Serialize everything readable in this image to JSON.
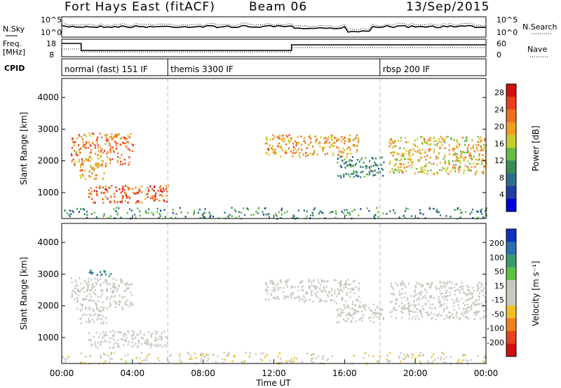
{
  "header": {
    "station": "Fort Hays East (fitACF)",
    "beam": "Beam 06",
    "date": "13/Sep/2015"
  },
  "noise_panel": {
    "left_label": "N.Sky",
    "right_label": "N.Search",
    "left_ticks": [
      "10^5",
      "10^0"
    ],
    "right_ticks": [
      "10^5",
      "10^0"
    ]
  },
  "freq_panel": {
    "left_label_line1": "Freq.",
    "left_label_line2": "[MHz]",
    "right_label": "Nave",
    "left_ticks": [
      "18",
      "8"
    ],
    "right_ticks": [
      "60",
      "0"
    ]
  },
  "cpid_panel": {
    "label": "CPID",
    "programs": [
      {
        "name": "normal (fast) 151 IF",
        "start_hour": 0
      },
      {
        "name": "themis 3300 IF",
        "start_hour": 6
      },
      {
        "name": "rbsp 200 IF",
        "start_hour": 18
      }
    ]
  },
  "colors": {
    "power_scale": [
      "#0000dd",
      "#1f3f9f",
      "#2e6e8a",
      "#3a8a5a",
      "#66bb44",
      "#c8cc2a",
      "#f0a020",
      "#f07020",
      "#e83c1c",
      "#d01010"
    ],
    "velocity_scale": [
      "#1030c0",
      "#2a70b0",
      "#3a9a70",
      "#5cc040",
      "#c8c8c0",
      "#c8c8c0",
      "#f0c020",
      "#f08020",
      "#e84020",
      "#d01010"
    ]
  },
  "chart_data": [
    {
      "type": "heatmap",
      "title": "",
      "ylabel": "Slant Range [km]",
      "xlabel": "",
      "x": [
        "00:00",
        "04:00",
        "08:00",
        "12:00",
        "16:00",
        "20:00",
        "00:00"
      ],
      "xlim_hours": [
        0,
        24
      ],
      "ylim": [
        180,
        4600
      ],
      "yticks": [
        1000,
        2000,
        3000,
        4000
      ],
      "colorbar": {
        "label": "Power [dB]",
        "ticks": [
          4,
          8,
          12,
          16,
          20,
          24,
          28
        ],
        "range": [
          0,
          30
        ]
      },
      "program_boundaries_hours": [
        6,
        18
      ],
      "regions": [
        {
          "t0": 0.5,
          "t1": 4.0,
          "r0": 1900,
          "r1": 2900,
          "peak": 22
        },
        {
          "t0": 1.0,
          "t1": 2.5,
          "r0": 1450,
          "r1": 1950,
          "peak": 20
        },
        {
          "t0": 1.5,
          "t1": 6.0,
          "r0": 700,
          "r1": 1250,
          "peak": 24
        },
        {
          "t0": 11.5,
          "t1": 16.8,
          "r0": 2150,
          "r1": 2850,
          "peak": 20
        },
        {
          "t0": 15.5,
          "t1": 18.2,
          "r0": 1500,
          "r1": 2150,
          "peak": 10
        },
        {
          "t0": 18.5,
          "t1": 24.0,
          "r0": 1600,
          "r1": 2800,
          "peak": 18
        },
        {
          "t0": 0.0,
          "t1": 24.0,
          "r0": 200,
          "r1": 550,
          "peak": 10
        }
      ]
    },
    {
      "type": "heatmap",
      "title": "",
      "ylabel": "Slant Range [km]",
      "xlabel": "Time UT",
      "x": [
        "00:00",
        "04:00",
        "08:00",
        "12:00",
        "16:00",
        "20:00",
        "00:00"
      ],
      "xlim_hours": [
        0,
        24
      ],
      "ylim": [
        180,
        4600
      ],
      "yticks": [
        1000,
        2000,
        3000,
        4000
      ],
      "colorbar": {
        "label": "Velocity [m s⁻¹]",
        "ticks": [
          200,
          100,
          50,
          15,
          -15,
          -50,
          -100,
          -200
        ],
        "range": [
          -250,
          250
        ]
      },
      "program_boundaries_hours": [
        6,
        18
      ],
      "regions": [
        {
          "t0": 0.5,
          "t1": 4.0,
          "r0": 1900,
          "r1": 2900,
          "peak": 0
        },
        {
          "t0": 1.0,
          "t1": 2.5,
          "r0": 1450,
          "r1": 1950,
          "peak": 0
        },
        {
          "t0": 1.5,
          "t1": 6.0,
          "r0": 700,
          "r1": 1250,
          "peak": 0
        },
        {
          "t0": 1.5,
          "t1": 3.0,
          "r0": 2950,
          "r1": 3150,
          "peak": 150
        },
        {
          "t0": 11.5,
          "t1": 16.8,
          "r0": 2150,
          "r1": 2850,
          "peak": 0
        },
        {
          "t0": 15.5,
          "t1": 18.2,
          "r0": 1500,
          "r1": 2150,
          "peak": 0
        },
        {
          "t0": 18.5,
          "t1": 24.0,
          "r0": 1600,
          "r1": 2800,
          "peak": 0
        },
        {
          "t0": 0.0,
          "t1": 24.0,
          "r0": 200,
          "r1": 550,
          "peak": -40
        }
      ]
    }
  ]
}
